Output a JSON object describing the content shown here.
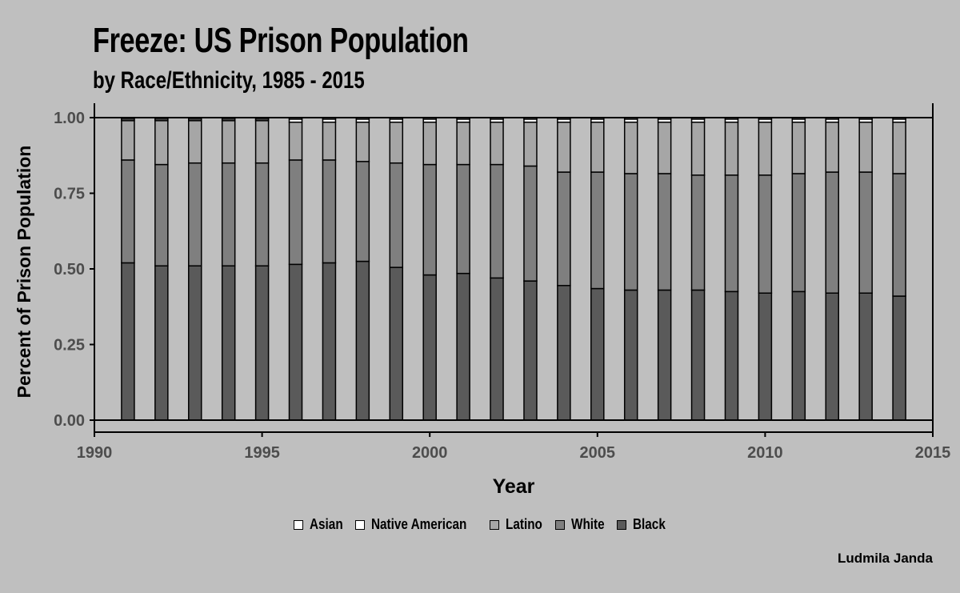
{
  "title": "Freeze: US Prison Population",
  "subtitle": "by Race/Ethnicity, 1985 - 2015",
  "caption": "Ludmila Janda",
  "colors": {
    "background": "#bfbfbf",
    "Black": "#5a5a5a",
    "White": "#7f7f7f",
    "Latino": "#a6a6a6",
    "Native American": "#ffffff",
    "Asian": "#ffffff"
  },
  "chart_data": {
    "type": "bar",
    "stacked": true,
    "xlabel": "Year",
    "ylabel": "Percent of Prison Population",
    "xlim": [
      1990,
      2015
    ],
    "ylim": [
      0,
      1
    ],
    "x_ticks": [
      1990,
      1995,
      2000,
      2005,
      2010,
      2015
    ],
    "y_ticks": [
      "0.00",
      "0.25",
      "0.50",
      "0.75",
      "1.00"
    ],
    "grid": false,
    "legend_position": "bottom",
    "legend_order": [
      "Asian",
      "Native American",
      "Latino",
      "White",
      "Black"
    ],
    "x": [
      1991,
      1992,
      1993,
      1994,
      1995,
      1996,
      1997,
      1998,
      1999,
      2000,
      2001,
      2002,
      2003,
      2004,
      2005,
      2006,
      2007,
      2008,
      2009,
      2010,
      2011,
      2012,
      2013,
      2014
    ],
    "series": [
      {
        "name": "Black",
        "values": [
          0.52,
          0.51,
          0.51,
          0.51,
          0.51,
          0.515,
          0.52,
          0.525,
          0.505,
          0.48,
          0.485,
          0.47,
          0.46,
          0.445,
          0.435,
          0.43,
          0.43,
          0.43,
          0.425,
          0.42,
          0.425,
          0.42,
          0.42,
          0.41
        ]
      },
      {
        "name": "White",
        "values": [
          0.34,
          0.335,
          0.34,
          0.34,
          0.34,
          0.345,
          0.34,
          0.33,
          0.345,
          0.365,
          0.36,
          0.375,
          0.38,
          0.375,
          0.385,
          0.385,
          0.385,
          0.38,
          0.385,
          0.39,
          0.39,
          0.4,
          0.4,
          0.405
        ]
      },
      {
        "name": "Latino",
        "values": [
          0.13,
          0.145,
          0.14,
          0.14,
          0.14,
          0.125,
          0.125,
          0.13,
          0.135,
          0.14,
          0.14,
          0.14,
          0.145,
          0.165,
          0.165,
          0.17,
          0.17,
          0.175,
          0.175,
          0.175,
          0.17,
          0.165,
          0.165,
          0.17
        ]
      },
      {
        "name": "Native American",
        "values": [
          0.005,
          0.005,
          0.005,
          0.005,
          0.005,
          0.01,
          0.01,
          0.01,
          0.01,
          0.01,
          0.01,
          0.01,
          0.01,
          0.01,
          0.01,
          0.01,
          0.01,
          0.01,
          0.01,
          0.01,
          0.01,
          0.01,
          0.01,
          0.01
        ]
      },
      {
        "name": "Asian",
        "values": [
          0.005,
          0.005,
          0.005,
          0.005,
          0.005,
          0.005,
          0.005,
          0.005,
          0.005,
          0.005,
          0.005,
          0.005,
          0.005,
          0.005,
          0.005,
          0.005,
          0.005,
          0.005,
          0.005,
          0.005,
          0.005,
          0.005,
          0.005,
          0.005
        ]
      }
    ]
  }
}
